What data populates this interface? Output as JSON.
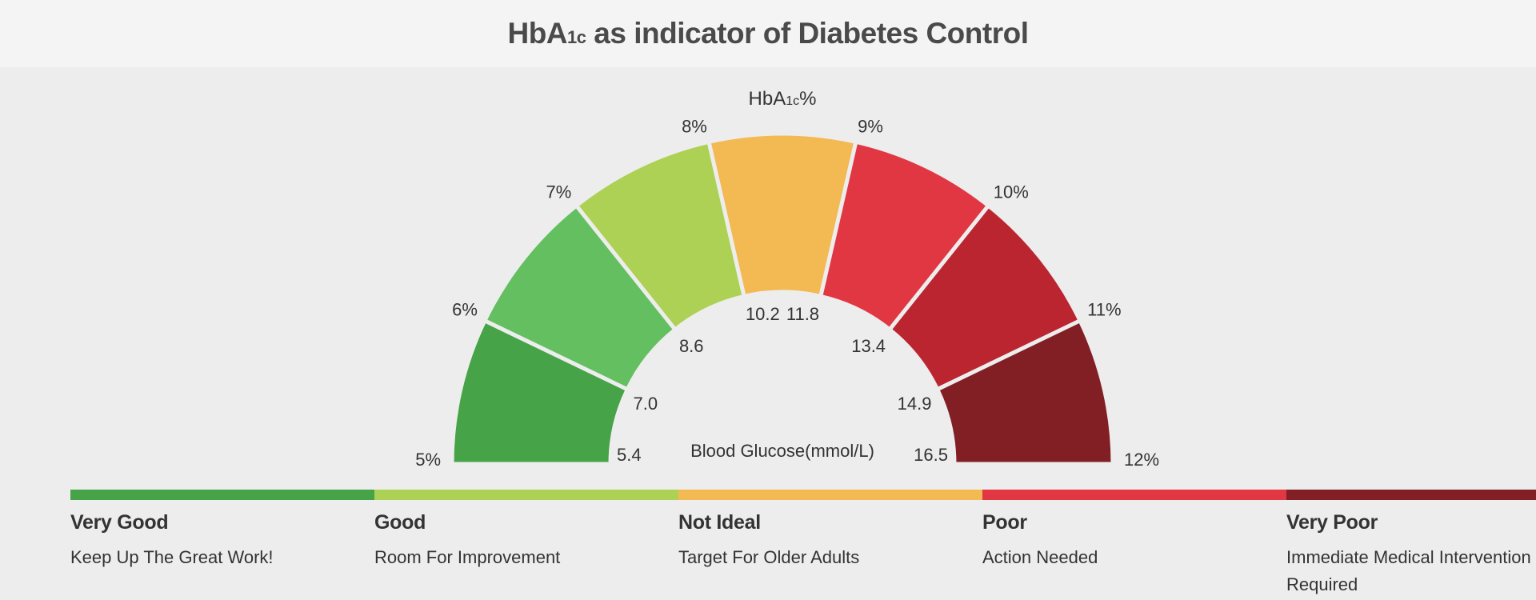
{
  "title": {
    "prefix": "HbA",
    "sub": "1c",
    "suffix": " as indicator of Diabetes Control"
  },
  "chart_data": {
    "type": "gauge",
    "top_label": {
      "prefix": "HbA",
      "sub": "1c",
      "suffix": "%"
    },
    "center_label": "Blood Glucose(mmol/L)",
    "hba1c_ticks": [
      "5%",
      "6%",
      "7%",
      "8%",
      "9%",
      "10%",
      "11%",
      "12%"
    ],
    "glucose_ticks": [
      "5.4",
      "7.0",
      "8.6",
      "10.2",
      "11.8",
      "13.4",
      "14.9",
      "16.5"
    ],
    "segment_colors": [
      "#47a347",
      "#63bf60",
      "#acd154",
      "#f3b952",
      "#e03743",
      "#bb2530",
      "#821f25"
    ]
  },
  "legend": [
    {
      "title": "Very Good",
      "desc": "Keep Up The Great Work!",
      "color": "#47a347"
    },
    {
      "title": "Good",
      "desc": "Room For Improvement",
      "color": "#acd154"
    },
    {
      "title": "Not Ideal",
      "desc": "Target For Older Adults",
      "color": "#f3b952"
    },
    {
      "title": "Poor",
      "desc": "Action Needed",
      "color": "#e03743"
    },
    {
      "title": "Very Poor",
      "desc": "Immediate Medical Intervention Required",
      "color": "#821f25"
    }
  ]
}
